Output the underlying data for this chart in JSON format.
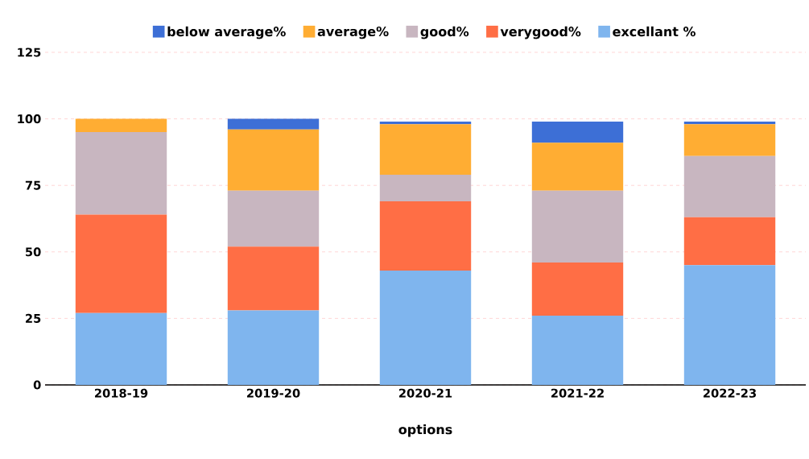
{
  "chart_data": {
    "type": "bar",
    "stacked": true,
    "xlabel": "options",
    "categories": [
      "2018-19",
      "2019-20",
      "2020-21",
      "2021-22",
      "2022-23"
    ],
    "series": [
      {
        "name": "excellant %",
        "color": "#7fb5ee",
        "values": [
          27,
          28,
          43,
          26,
          45
        ]
      },
      {
        "name": "verygood%",
        "color": "#ff6e45",
        "values": [
          37,
          24,
          26,
          20,
          18
        ]
      },
      {
        "name": "good%",
        "color": "#c8b6c0",
        "values": [
          31,
          21,
          10,
          27,
          23
        ]
      },
      {
        "name": "average%",
        "color": "#ffad33",
        "values": [
          5,
          23,
          19,
          18,
          12
        ]
      },
      {
        "name": "below average%",
        "color": "#3d6fd6",
        "values": [
          0,
          4,
          1,
          8,
          1
        ]
      }
    ],
    "ylim": [
      0,
      125
    ],
    "yticks": [
      0,
      25,
      50,
      75,
      100,
      125
    ],
    "grid": "y",
    "legend": "top"
  }
}
